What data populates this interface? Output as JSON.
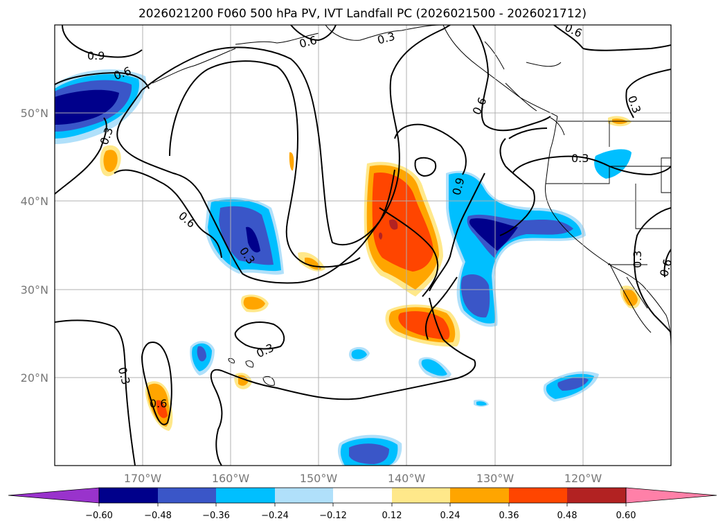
{
  "title": "2026021200 F060 500 hPa PV, IVT Landfall PC (2026021500 - 2026021712)",
  "lat_labels": [
    "50°N",
    "40°N",
    "30°N",
    "20°N"
  ],
  "lon_labels": [
    "170°W",
    "160°W",
    "150°W",
    "140°W",
    "130°W",
    "120°W"
  ],
  "colorbar": {
    "ticks": [
      "−0.60",
      "−0.48",
      "−0.36",
      "−0.24",
      "−0.12",
      "0.12",
      "0.24",
      "0.36",
      "0.48",
      "0.60"
    ],
    "colors": {
      "under": "#9933cc",
      "c1": "#00008b",
      "c2": "#3a56c8",
      "c3": "#00bfff",
      "c4": "#b0e0fa",
      "c5": "#ffffff",
      "c6": "#ffe88a",
      "c7": "#ffa500",
      "c8": "#ff4500",
      "c9": "#b22222",
      "over": "#ff80a8"
    }
  },
  "contour_labels": [
    "0.9",
    "0.6",
    "0.3",
    "0.6",
    "0.3",
    "0.6",
    "0.3",
    "0.6",
    "0.9",
    "0.6",
    "0.3",
    "0.3",
    "0.6",
    "0.3",
    "0.3",
    "0.6",
    "0.3",
    "0.6",
    "0.3",
    "0.6"
  ]
}
